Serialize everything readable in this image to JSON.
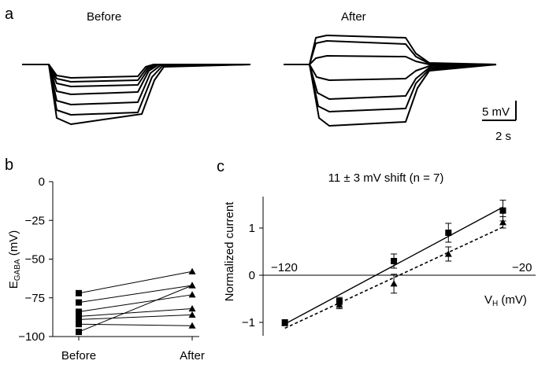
{
  "panel_a": {
    "letter": "a",
    "before_label": "Before",
    "after_label": "After",
    "scale_v_label": "5 mV",
    "scale_t_label": "2 s"
  },
  "panel_b": {
    "letter": "b",
    "ylabel_main": "E",
    "ylabel_sub": "GABA",
    "ylabel_unit": " (mV)",
    "yticks": [
      "0",
      "−25",
      "−50",
      "−75",
      "−100"
    ],
    "xticks": [
      "Before",
      "After"
    ]
  },
  "panel_c": {
    "letter": "c",
    "title": "11 ± 3 mV shift (n = 7)",
    "ylabel": "Normalized current",
    "yticks": [
      "1",
      "0",
      "−1"
    ],
    "x_left_label": "−120",
    "x_right_label": "−20",
    "xlabel_main": "V",
    "xlabel_sub": "H",
    "xlabel_unit": " (mV)"
  },
  "chart_data": [
    {
      "type": "line",
      "panel": "b",
      "ylabel": "EGABA (mV)",
      "categories": [
        "Before",
        "After"
      ],
      "ylim": [
        -100,
        0
      ],
      "series": [
        {
          "values": [
            -72,
            -58
          ]
        },
        {
          "values": [
            -78,
            -67
          ]
        },
        {
          "values": [
            -84,
            -73
          ]
        },
        {
          "values": [
            -87,
            -82
          ]
        },
        {
          "values": [
            -89,
            -86
          ]
        },
        {
          "values": [
            -92,
            -93
          ]
        },
        {
          "values": [
            -97,
            -67
          ]
        }
      ]
    },
    {
      "type": "line",
      "panel": "c",
      "title": "11 ± 3 mV shift (n = 7)",
      "xlabel": "VH (mV)",
      "ylabel": "Normalized current",
      "xlim": [
        -120,
        -20
      ],
      "ylim": [
        -1.1,
        1.6
      ],
      "series": [
        {
          "marker": "square",
          "line": "solid",
          "points": [
            [
              -112,
              -1.0
            ],
            [
              -92,
              -0.55
            ],
            [
              -72,
              0.3
            ],
            [
              -52,
              0.9
            ],
            [
              -32,
              1.37
            ]
          ],
          "errors": [
            0.02,
            0.08,
            0.15,
            0.2,
            0.22
          ]
        },
        {
          "marker": "triangle",
          "line": "dashed",
          "points": [
            [
              -112,
              -1.02
            ],
            [
              -92,
              -0.63
            ],
            [
              -72,
              -0.18
            ],
            [
              -52,
              0.45
            ],
            [
              -32,
              1.12
            ]
          ],
          "errors": [
            0.02,
            0.08,
            0.2,
            0.15,
            0.12
          ]
        }
      ]
    }
  ]
}
